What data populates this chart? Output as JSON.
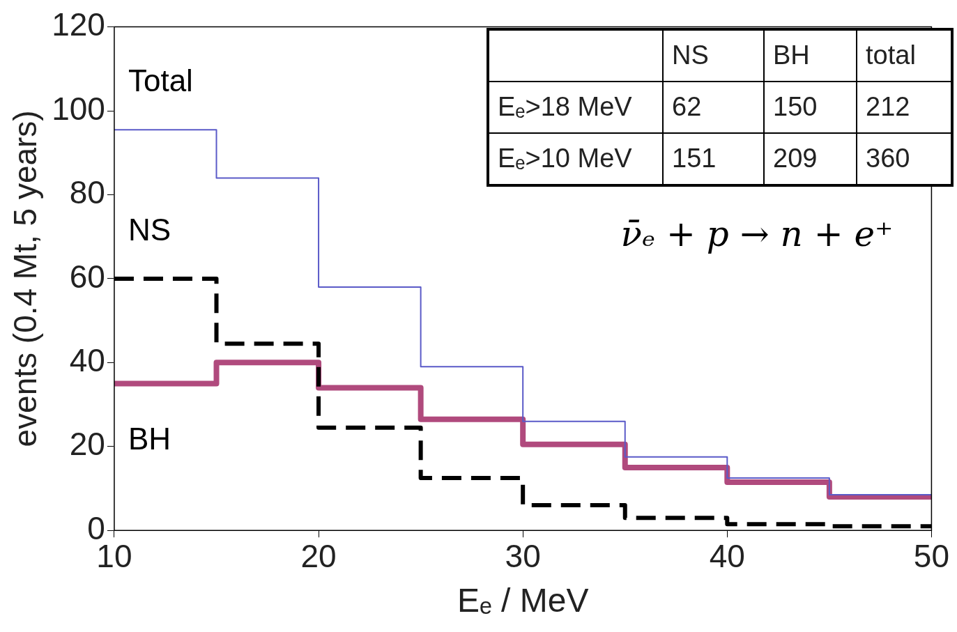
{
  "chart_data": {
    "type": "histogram",
    "xlabel": "Eₑ / MeV",
    "ylabel": "events (0.4 Mt, 5 years)",
    "bins": [
      10,
      15,
      20,
      25,
      30,
      35,
      40,
      45,
      50
    ],
    "series": [
      {
        "name": "Total",
        "color": "#5a5ac8",
        "values": [
          95.5,
          84,
          58,
          39,
          26,
          17.5,
          12.5,
          8.5
        ]
      },
      {
        "name": "NS",
        "color": "#000000",
        "line_style": "dashed",
        "values": [
          60,
          44.5,
          24.5,
          12.5,
          6,
          3,
          1.5,
          1
        ]
      },
      {
        "name": "BH",
        "color": "#b04a7d",
        "values": [
          35,
          40,
          34,
          26.5,
          20.5,
          15,
          11.5,
          8
        ]
      }
    ],
    "xlim": [
      10,
      50
    ],
    "ylim": [
      0,
      120
    ],
    "xticks": [
      10,
      20,
      30,
      40,
      50
    ],
    "yticks": [
      0,
      20,
      40,
      60,
      80,
      100,
      120
    ],
    "annotations": [
      "NS",
      "BH",
      "total",
      "Eₑ>18 MeV",
      "62",
      "150",
      "212",
      "Eₑ>10 MeV",
      "151",
      "209",
      "360",
      "ν̄ₑ + p → n + e⁺"
    ]
  }
}
